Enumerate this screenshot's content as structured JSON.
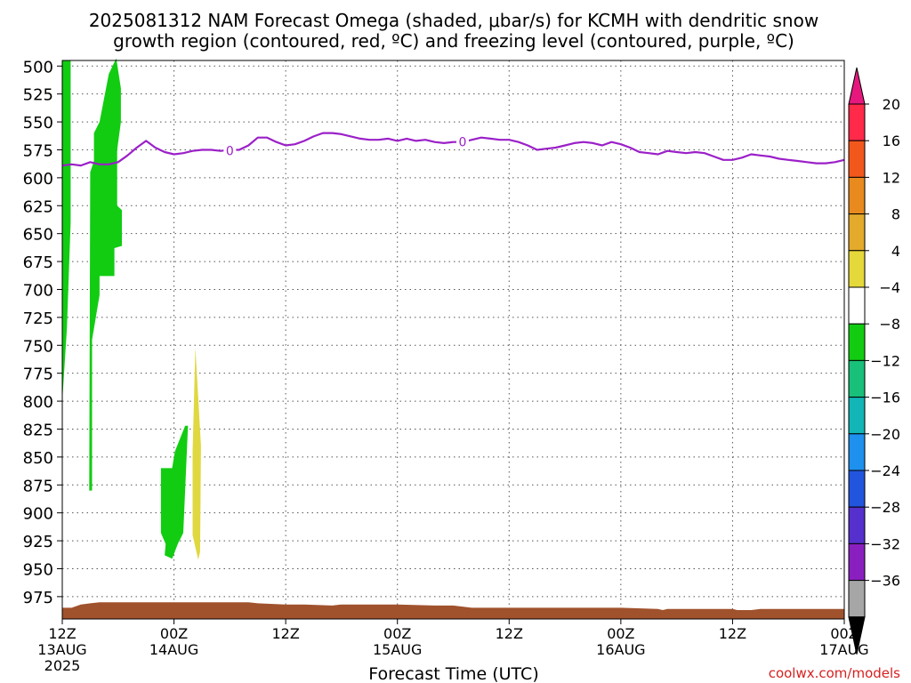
{
  "title_line1": "2025081312 NAM Forecast Omega (shaded, μbar/s) for KCMH with dendritic snow",
  "title_line2": "growth region (contoured, red, ºC) and freezing level (contoured, purple, ºC)",
  "xlabel": "Forecast Time (UTC)",
  "credit": "coolwx.com/models",
  "chart_data": {
    "type": "heatmap",
    "y_axis": {
      "ticks": [
        500,
        525,
        550,
        575,
        600,
        625,
        650,
        675,
        700,
        725,
        750,
        775,
        800,
        825,
        850,
        875,
        900,
        925,
        950,
        975
      ],
      "range": [
        495,
        995
      ],
      "inverted": true
    },
    "x_axis": {
      "range_hours": [
        0,
        84
      ],
      "ticks": [
        {
          "hour": 0,
          "line1": "12Z",
          "line2": "13AUG",
          "line3": "2025"
        },
        {
          "hour": 12,
          "line1": "00Z",
          "line2": "14AUG",
          "line3": ""
        },
        {
          "hour": 24,
          "line1": "12Z",
          "line2": "",
          "line3": ""
        },
        {
          "hour": 36,
          "line1": "00Z",
          "line2": "15AUG",
          "line3": ""
        },
        {
          "hour": 48,
          "line1": "12Z",
          "line2": "",
          "line3": ""
        },
        {
          "hour": 60,
          "line1": "00Z",
          "line2": "16AUG",
          "line3": ""
        },
        {
          "hour": 72,
          "line1": "12Z",
          "line2": "",
          "line3": ""
        },
        {
          "hour": 84,
          "line1": "00Z",
          "line2": "17AUG",
          "line3": ""
        }
      ]
    },
    "grid": true,
    "colorbar": {
      "labels": [
        "20",
        "16",
        "12",
        "8",
        "4",
        "−4",
        "−8",
        "−12",
        "−16",
        "−20",
        "−24",
        "−28",
        "−32",
        "−36"
      ],
      "colors": [
        "#ff2a4a",
        "#f2581c",
        "#e88a1e",
        "#e3aa2b",
        "#e5d83a",
        "#ffffff",
        "#12cc12",
        "#18c07a",
        "#12b6b6",
        "#1e90ee",
        "#2255dd",
        "#5530cc",
        "#8a1fc0",
        "#a6a6a6"
      ],
      "top_arrow_color": "#e6187e",
      "bottom_arrow_color": "#000000"
    },
    "freezing_level": {
      "color": "#9b20c8",
      "label": "0",
      "points": [
        [
          0,
          589
        ],
        [
          1,
          588
        ],
        [
          2,
          589
        ],
        [
          3,
          586
        ],
        [
          4,
          588
        ],
        [
          5,
          588
        ],
        [
          6,
          586
        ],
        [
          7,
          580
        ],
        [
          8,
          573
        ],
        [
          9,
          567
        ],
        [
          10,
          573
        ],
        [
          11,
          577
        ],
        [
          12,
          579
        ],
        [
          13,
          578
        ],
        [
          14,
          576
        ],
        [
          15,
          575
        ],
        [
          16,
          575
        ],
        [
          17,
          576
        ],
        [
          18,
          575
        ],
        [
          19,
          575
        ],
        [
          20,
          571
        ],
        [
          21,
          564
        ],
        [
          22,
          564
        ],
        [
          23,
          568
        ],
        [
          24,
          571
        ],
        [
          25,
          570
        ],
        [
          26,
          567
        ],
        [
          27,
          563
        ],
        [
          28,
          560
        ],
        [
          29,
          560
        ],
        [
          30,
          561
        ],
        [
          31,
          563
        ],
        [
          32,
          565
        ],
        [
          33,
          566
        ],
        [
          34,
          566
        ],
        [
          35,
          565
        ],
        [
          36,
          567
        ],
        [
          37,
          565
        ],
        [
          38,
          567
        ],
        [
          39,
          566
        ],
        [
          40,
          568
        ],
        [
          41,
          569
        ],
        [
          42,
          568
        ],
        [
          43,
          568
        ],
        [
          44,
          566
        ],
        [
          45,
          564
        ],
        [
          46,
          565
        ],
        [
          47,
          566
        ],
        [
          48,
          566
        ],
        [
          49,
          568
        ],
        [
          50,
          571
        ],
        [
          51,
          575
        ],
        [
          52,
          574
        ],
        [
          53,
          573
        ],
        [
          54,
          571
        ],
        [
          55,
          569
        ],
        [
          56,
          568
        ],
        [
          57,
          569
        ],
        [
          58,
          571
        ],
        [
          59,
          568
        ],
        [
          60,
          570
        ],
        [
          61,
          573
        ],
        [
          62,
          577
        ],
        [
          63,
          578
        ],
        [
          64,
          579
        ],
        [
          65,
          576
        ],
        [
          66,
          577
        ],
        [
          67,
          578
        ],
        [
          68,
          577
        ],
        [
          69,
          578
        ],
        [
          70,
          581
        ],
        [
          71,
          584
        ],
        [
          72,
          584
        ],
        [
          73,
          582
        ],
        [
          74,
          579
        ],
        [
          75,
          580
        ],
        [
          76,
          581
        ],
        [
          77,
          583
        ],
        [
          78,
          584
        ],
        [
          79,
          585
        ],
        [
          80,
          586
        ],
        [
          81,
          587
        ],
        [
          82,
          587
        ],
        [
          83,
          586
        ],
        [
          84,
          584
        ]
      ],
      "markers": [
        [
          18,
          576
        ],
        [
          43,
          568
        ]
      ]
    },
    "omega_regions": [
      {
        "value_range": "-8 to -4",
        "color": "#12cc12",
        "points": [
          [
            0,
            495
          ],
          [
            0.9,
            495
          ],
          [
            0.9,
            640
          ],
          [
            0.5,
            735
          ],
          [
            0,
            800
          ]
        ]
      },
      {
        "value_range": "-8 to -4",
        "color": "#12cc12",
        "points": [
          [
            4.0,
            550
          ],
          [
            5.0,
            507
          ],
          [
            5.8,
            493
          ],
          [
            6.3,
            520
          ],
          [
            6.3,
            550
          ],
          [
            5.9,
            575
          ],
          [
            5.9,
            625
          ],
          [
            6.4,
            629
          ],
          [
            6.4,
            661
          ],
          [
            5.6,
            663
          ],
          [
            5.6,
            688
          ],
          [
            4.0,
            688
          ],
          [
            4.0,
            705
          ],
          [
            3.2,
            745
          ],
          [
            3.2,
            880
          ],
          [
            2.9,
            880
          ],
          [
            3.0,
            595
          ],
          [
            3.4,
            585
          ],
          [
            3.4,
            560
          ]
        ]
      },
      {
        "value_range": "-8 to -4",
        "color": "#12cc12",
        "points": [
          [
            10.6,
            860
          ],
          [
            11.8,
            860
          ],
          [
            12.1,
            845
          ],
          [
            13.2,
            822
          ],
          [
            13.5,
            822
          ],
          [
            13.0,
            918
          ],
          [
            12.4,
            928
          ],
          [
            11.8,
            941
          ],
          [
            11.0,
            938
          ],
          [
            11.1,
            928
          ],
          [
            10.6,
            918
          ]
        ]
      },
      {
        "value_range": "4 to 8",
        "color": "#e0d840",
        "points": [
          [
            14.3,
            752
          ],
          [
            14.9,
            840
          ],
          [
            14.8,
            935
          ],
          [
            14.6,
            942
          ],
          [
            14.0,
            920
          ],
          [
            14.0,
            845
          ]
        ]
      }
    ],
    "terrain": {
      "color": "#a0522d",
      "points": [
        [
          0,
          985
        ],
        [
          1,
          985
        ],
        [
          2,
          982
        ],
        [
          3,
          981
        ],
        [
          4,
          980
        ],
        [
          6,
          980
        ],
        [
          8,
          980
        ],
        [
          12,
          980
        ],
        [
          16,
          980
        ],
        [
          20,
          980
        ],
        [
          21,
          981
        ],
        [
          24,
          982
        ],
        [
          26,
          982
        ],
        [
          29,
          983
        ],
        [
          30,
          982
        ],
        [
          33,
          982
        ],
        [
          36,
          982
        ],
        [
          40,
          983
        ],
        [
          42,
          983
        ],
        [
          44,
          985
        ],
        [
          48,
          985
        ],
        [
          52,
          985
        ],
        [
          56,
          985
        ],
        [
          60,
          985
        ],
        [
          64,
          986
        ],
        [
          64.5,
          987
        ],
        [
          65,
          986
        ],
        [
          68,
          986
        ],
        [
          72,
          986
        ],
        [
          72.5,
          987
        ],
        [
          74,
          987
        ],
        [
          75,
          986
        ],
        [
          78,
          986
        ],
        [
          84,
          986
        ]
      ],
      "bottom": 995
    }
  }
}
